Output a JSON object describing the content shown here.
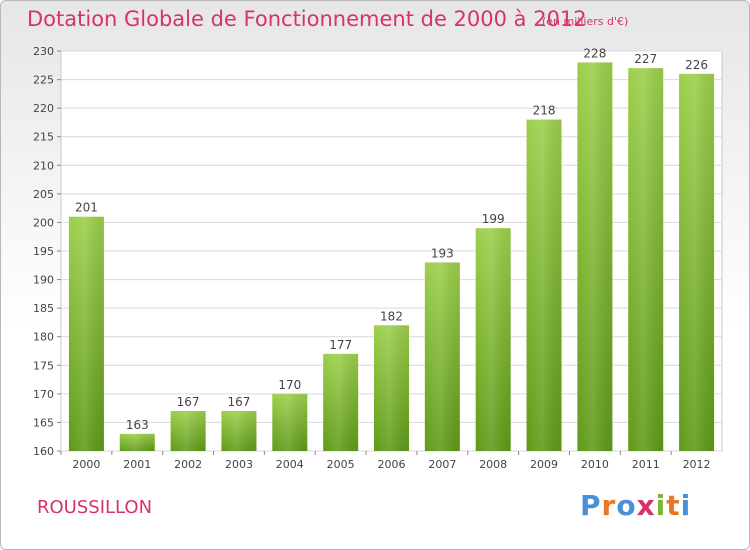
{
  "chart_data": {
    "type": "bar",
    "title": "Dotation Globale de Fonctionnement de 2000 à 2012",
    "subtitle": "(en milliers d'€)",
    "categories": [
      "2000",
      "2001",
      "2002",
      "2003",
      "2004",
      "2005",
      "2006",
      "2007",
      "2008",
      "2009",
      "2010",
      "2011",
      "2012"
    ],
    "values": [
      201,
      163,
      167,
      167,
      170,
      177,
      182,
      193,
      199,
      218,
      228,
      227,
      226
    ],
    "ylim": [
      160,
      230
    ],
    "yticks": [
      160,
      165,
      170,
      175,
      180,
      185,
      190,
      195,
      200,
      205,
      210,
      215,
      220,
      225,
      230
    ],
    "grid": true,
    "bar_color": "#7cb82f"
  },
  "footer": {
    "place": "ROUSSILLON",
    "logo": [
      "P",
      "r",
      "o",
      "x",
      "i",
      "t",
      "i"
    ],
    "logo_colors": [
      "#4a90d9",
      "#e87722",
      "#4a90d9",
      "#d6336c",
      "#7cb82f",
      "#e87722",
      "#4a90d9"
    ]
  }
}
